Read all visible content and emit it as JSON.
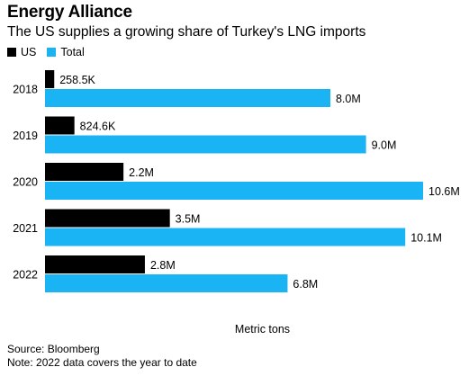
{
  "header": {
    "title": "Energy Alliance",
    "subtitle": "The US supplies a growing share of Turkey's LNG imports"
  },
  "legend": [
    {
      "label": "US",
      "color": "#000000"
    },
    {
      "label": "Total",
      "color": "#1ab3f4"
    }
  ],
  "colors": {
    "us": "#000000",
    "total": "#1ab3f4"
  },
  "footer": {
    "source": "Source: Bloomberg",
    "note": "Note: 2022 data covers the year to date"
  },
  "chart_data": {
    "type": "bar",
    "orientation": "horizontal",
    "title": "Energy Alliance",
    "subtitle": "The US supplies a growing share of Turkey's LNG imports",
    "xlabel": "Metric tons",
    "ylabel": "",
    "categories": [
      "2018",
      "2019",
      "2020",
      "2021",
      "2022"
    ],
    "series": [
      {
        "name": "US",
        "values": [
          258500,
          824600,
          2200000,
          3500000,
          2800000
        ],
        "labels": [
          "258.5K",
          "824.6K",
          "2.2M",
          "3.5M",
          "2.8M"
        ]
      },
      {
        "name": "Total",
        "values": [
          8000000,
          9000000,
          10600000,
          10100000,
          6800000
        ],
        "labels": [
          "8.0M",
          "9.0M",
          "10.6M",
          "10.1M",
          "6.8M"
        ]
      }
    ],
    "xlim": [
      0,
      10600000
    ],
    "grid": false,
    "legend_position": "top-left"
  }
}
